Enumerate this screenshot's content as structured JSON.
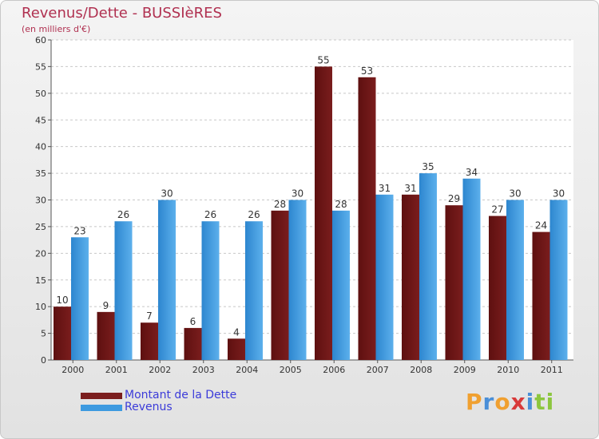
{
  "chart_data": {
    "type": "bar",
    "title": "Revenus/Dette - BUSSIèRES",
    "subtitle": "(en milliers d'€)",
    "categories": [
      "2000",
      "2001",
      "2002",
      "2003",
      "2004",
      "2005",
      "2006",
      "2007",
      "2008",
      "2009",
      "2010",
      "2011"
    ],
    "series": [
      {
        "name": "Montant de la Dette",
        "color": "#7a1d1d",
        "values": [
          10,
          9,
          7,
          6,
          4,
          28,
          55,
          53,
          31,
          29,
          27,
          24
        ]
      },
      {
        "name": "Revenus",
        "color": "#3d9ae0",
        "values": [
          23,
          26,
          30,
          26,
          26,
          30,
          28,
          31,
          35,
          34,
          30,
          30
        ]
      }
    ],
    "ylim": [
      0,
      60
    ],
    "yticks": [
      0,
      5,
      10,
      15,
      20,
      25,
      30,
      35,
      40,
      45,
      50,
      55,
      60
    ],
    "xlabel": "",
    "ylabel": "",
    "grid": true,
    "legend": "bottom-left"
  },
  "logo": {
    "letters": [
      "P",
      "r",
      "o",
      "x",
      "i",
      "t",
      "i"
    ],
    "colors": [
      "#f0a030",
      "#4a8fd8",
      "#f0a030",
      "#d83a3a",
      "#4a8fd8",
      "#8cc63f",
      "#8cc63f"
    ]
  }
}
